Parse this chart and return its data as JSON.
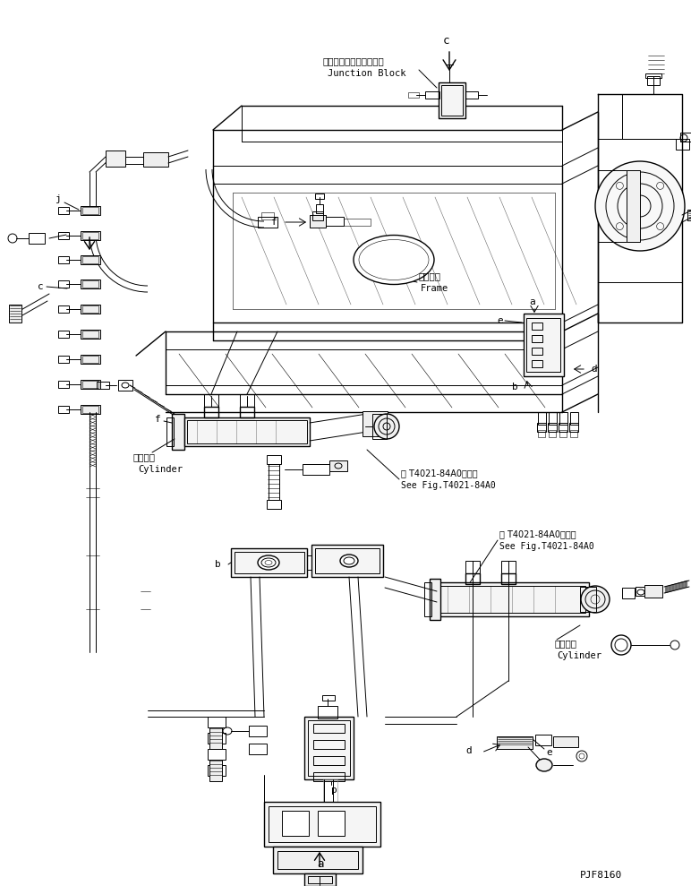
{
  "fig_width": 7.72,
  "fig_height": 9.89,
  "dpi": 100,
  "bg_color": "#ffffff",
  "line_color": "#000000",
  "text_color": "#000000",
  "part_code": "PJF8160",
  "labels": {
    "junction_block_jp": "ジャンクションブロック",
    "junction_block_en": "Junction Block",
    "frame_jp": "フレーム",
    "frame_en": "Frame",
    "cylinder_jp1": "シリンダ",
    "cylinder_en1": "Cylinder",
    "cylinder_jp2": "シリンダ",
    "cylinder_en2": "Cylinder",
    "see_fig1_jp": "第 T4021-84A0図参照",
    "see_fig1_en": "See Fig.T4021-84A0",
    "see_fig2_jp": "第 T4021-84A0図参照",
    "see_fig2_en": "See Fig.T4021-84A0"
  }
}
